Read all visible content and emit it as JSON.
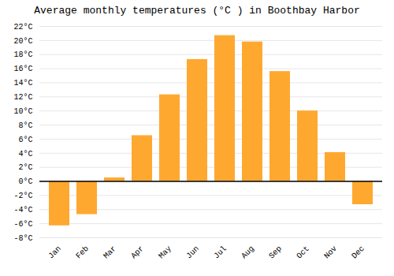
{
  "chart_data": {
    "type": "bar",
    "title": "Average monthly temperatures (°C ) in Boothbay Harbor",
    "categories": [
      "Jan",
      "Feb",
      "Mar",
      "Apr",
      "May",
      "Jun",
      "Jul",
      "Aug",
      "Sep",
      "Oct",
      "Nov",
      "Dec"
    ],
    "values": [
      -6.3,
      -4.7,
      0.5,
      6.5,
      12.3,
      17.3,
      20.7,
      19.8,
      15.6,
      10.0,
      4.1,
      -3.3
    ],
    "color": "#FFA830",
    "ylim": [
      -8,
      22
    ],
    "yticks": [
      {
        "value": -8,
        "label": "-8°C"
      },
      {
        "value": -6,
        "label": "-6°C"
      },
      {
        "value": -4,
        "label": "-4°C"
      },
      {
        "value": -2,
        "label": "-2°C"
      },
      {
        "value": 0,
        "label": "0°C"
      },
      {
        "value": 2,
        "label": "2°C"
      },
      {
        "value": 4,
        "label": "4°C"
      },
      {
        "value": 6,
        "label": "6°C"
      },
      {
        "value": 8,
        "label": "8°C"
      },
      {
        "value": 10,
        "label": "10°C"
      },
      {
        "value": 12,
        "label": "12°C"
      },
      {
        "value": 14,
        "label": "14°C"
      },
      {
        "value": 16,
        "label": "16°C"
      },
      {
        "value": 18,
        "label": "18°C"
      },
      {
        "value": 20,
        "label": "20°C"
      },
      {
        "value": 22,
        "label": "22°C"
      }
    ],
    "grid": true
  }
}
